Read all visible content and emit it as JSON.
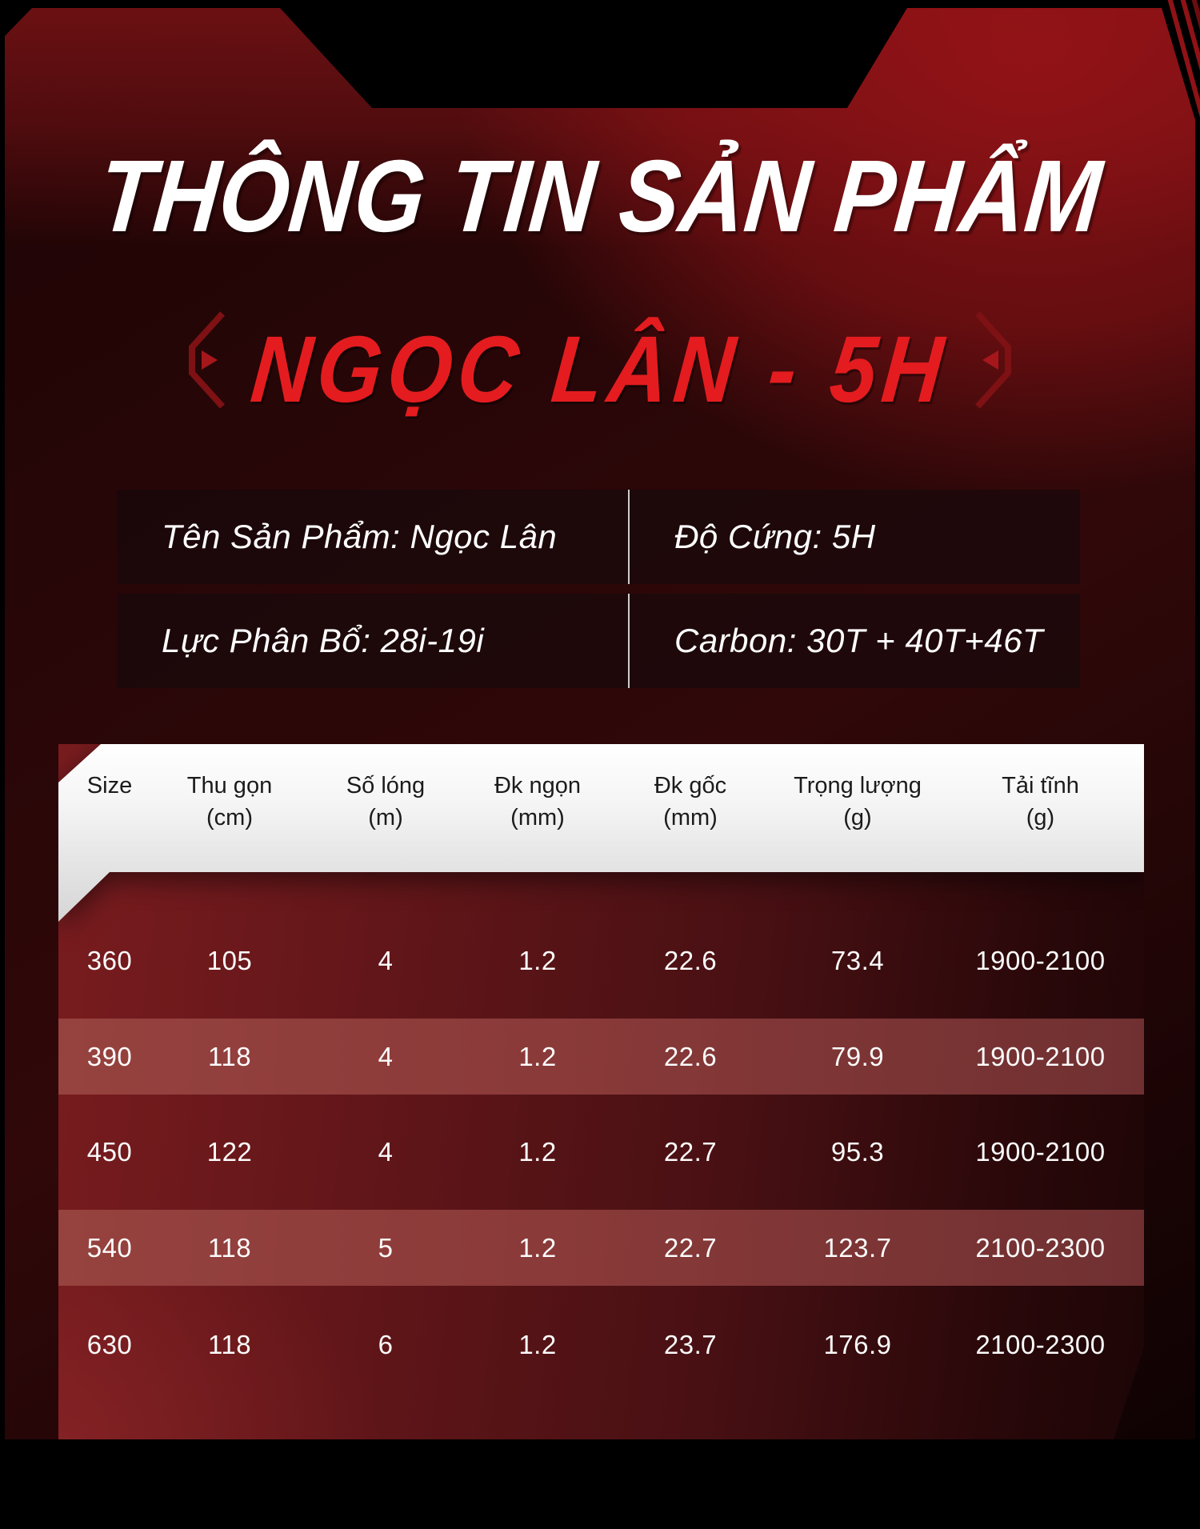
{
  "header": {
    "title": "THÔNG TIN SẢN PHẨM",
    "subtitle": "NGỌC LÂN - 5H"
  },
  "specs": {
    "product_name": "Tên Sản Phẩm: Ngọc Lân",
    "hardness": "Độ Cứng: 5H",
    "power_distribution": "Lực Phân Bổ: 28i-19i",
    "carbon": "Carbon: 30T + 40T+46T"
  },
  "table": {
    "columns": [
      {
        "label": "Size",
        "unit": ""
      },
      {
        "label": "Thu gọn",
        "unit": "(cm)"
      },
      {
        "label": "Số lóng",
        "unit": "(m)"
      },
      {
        "label": "Đk ngọn",
        "unit": "(mm)"
      },
      {
        "label": "Đk gốc",
        "unit": "(mm)"
      },
      {
        "label": "Trọng lượng",
        "unit": "(g)"
      },
      {
        "label": "Tải tĩnh",
        "unit": "(g)"
      }
    ],
    "rows": [
      [
        "360",
        "105",
        "4",
        "1.2",
        "22.6",
        "73.4",
        "1900-2100"
      ],
      [
        "390",
        "118",
        "4",
        "1.2",
        "22.6",
        "79.9",
        "1900-2100"
      ],
      [
        "450",
        "122",
        "4",
        "1.2",
        "22.7",
        "95.3",
        "1900-2100"
      ],
      [
        "540",
        "118",
        "5",
        "1.2",
        "22.7",
        "123.7",
        "2100-2300"
      ],
      [
        "630",
        "118",
        "6",
        "1.2",
        "23.7",
        "176.9",
        "2100-2300"
      ]
    ]
  },
  "colors": {
    "accent_red": "#e41c1f",
    "banner_red": "#7a1316",
    "card_dark": "#1e0405",
    "row_highlight": "#96423f",
    "table_header_bg": "#ffffff",
    "text_light": "#fbfbfb",
    "bracket_red": "#7d1114",
    "bracket_arrow": "#a6171b"
  }
}
